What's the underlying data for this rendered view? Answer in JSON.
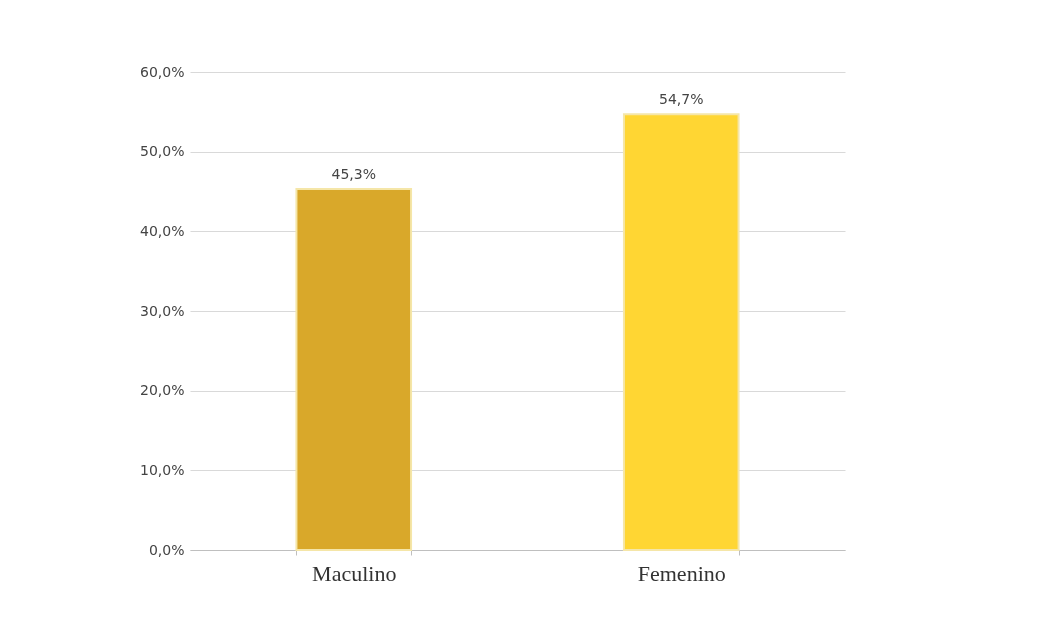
{
  "chart_data": {
    "type": "bar",
    "categories": [
      "Maculino",
      "Femenino"
    ],
    "values": [
      45.3,
      54.7
    ],
    "colors": [
      "#d9a82a",
      "#ffd633"
    ],
    "value_labels": [
      "45,3%",
      "54,7%"
    ],
    "ylim": [
      0,
      60
    ],
    "yticks": [
      {
        "value": 0,
        "label": "0,0%"
      },
      {
        "value": 10,
        "label": "10,0%"
      },
      {
        "value": 20,
        "label": "20,0%"
      },
      {
        "value": 30,
        "label": "30,0%"
      },
      {
        "value": 40,
        "label": "40,0%"
      },
      {
        "value": 50,
        "label": "50,0%"
      },
      {
        "value": 60,
        "label": "60,0%"
      }
    ],
    "grid": "y"
  }
}
